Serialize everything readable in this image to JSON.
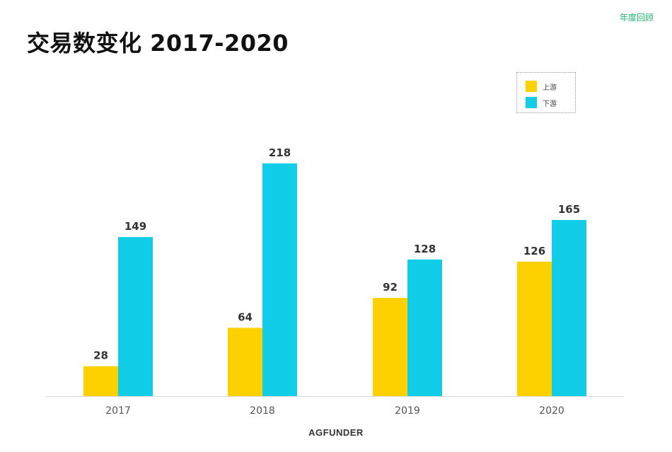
{
  "header": {
    "tag": "年度回顾",
    "title": "交易数变化 2017-2020"
  },
  "footer": {
    "logo": "AGFUNDER"
  },
  "colors": {
    "upstream": "#FDD000",
    "downstream": "#12CDE8",
    "tag": "#22B573"
  },
  "chart_data": {
    "type": "bar",
    "title": "交易数变化 2017-2020",
    "categories": [
      "2017",
      "2018",
      "2019",
      "2020"
    ],
    "series": [
      {
        "name": "上游",
        "values": [
          28,
          64,
          92,
          126
        ],
        "color": "#FDD000"
      },
      {
        "name": "下游",
        "values": [
          149,
          218,
          128,
          165
        ],
        "color": "#12CDE8"
      }
    ],
    "ylim": [
      0,
      240
    ],
    "grid": false,
    "legend_position": "top-right",
    "data_labels": true
  }
}
